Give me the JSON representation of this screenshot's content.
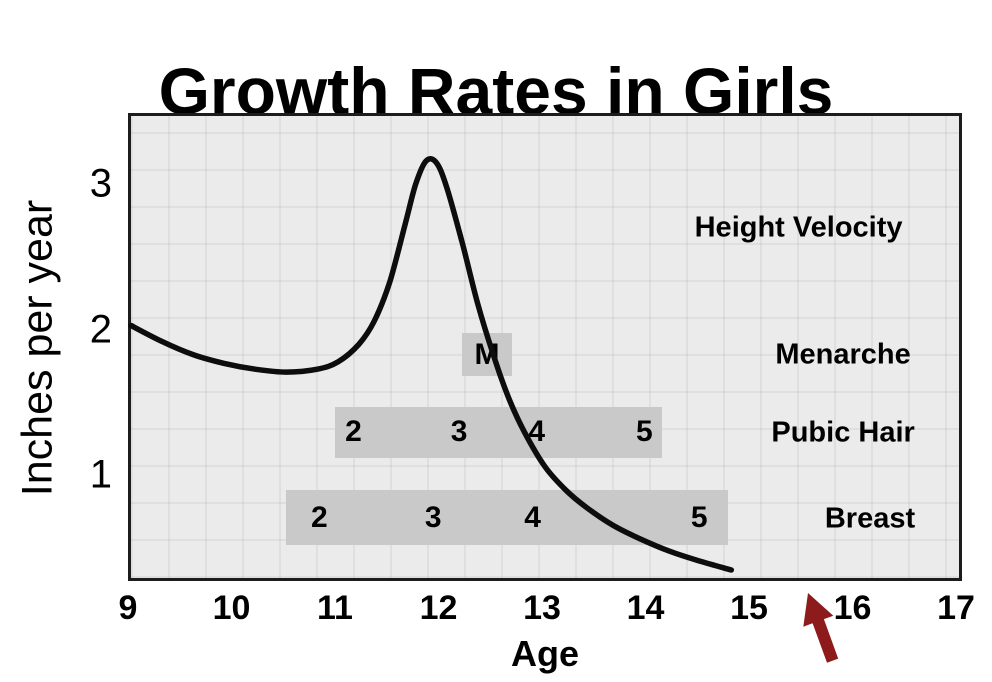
{
  "title": "Growth Rates in Girls",
  "axes": {
    "x_label": "Age",
    "y_label": "Inches per year"
  },
  "colors": {
    "curve": "#0d0d0d",
    "band": "#c9c9c9",
    "arrow": "#8e1b1b",
    "plot_background": "#ebebeb",
    "text": "#000000"
  },
  "chart_data": {
    "type": "line",
    "title": "Growth Rates in Girls",
    "xlabel": "Age",
    "ylabel": "Inches per year",
    "xlim": [
      9,
      17
    ],
    "ylim": [
      0.315,
      3.49
    ],
    "x_ticks": [
      9,
      10,
      11,
      12,
      13,
      14,
      15,
      16,
      17
    ],
    "y_ticks": [
      1,
      2,
      3
    ],
    "grid": "subtle square pattern on light gray plot background",
    "legend_position": "none",
    "series": [
      {
        "name": "Height Velocity",
        "x": [
          9.0,
          9.3,
          9.6,
          9.9,
          10.2,
          10.5,
          10.8,
          11.0,
          11.2,
          11.35,
          11.5,
          11.65,
          11.75,
          11.85,
          11.95,
          12.05,
          12.2,
          12.35,
          12.5,
          12.65,
          12.8,
          13.0,
          13.2,
          13.4,
          13.65,
          13.9,
          14.2,
          14.5,
          14.8
        ],
        "y": [
          2.05,
          1.94,
          1.85,
          1.79,
          1.75,
          1.73,
          1.75,
          1.8,
          1.92,
          2.08,
          2.35,
          2.75,
          3.02,
          3.18,
          3.17,
          3.0,
          2.62,
          2.2,
          1.85,
          1.55,
          1.32,
          1.08,
          0.92,
          0.8,
          0.68,
          0.59,
          0.5,
          0.43,
          0.37
        ]
      }
    ],
    "bands": [
      {
        "id": "menarche",
        "x_start": 12.2,
        "x_end": 12.68,
        "y_top": 2.0,
        "y_bottom": 1.7,
        "labels": [
          {
            "text": "M",
            "x": 12.44
          }
        ]
      },
      {
        "id": "pubic-hair",
        "x_start": 10.97,
        "x_end": 14.13,
        "y_top": 1.49,
        "y_bottom": 1.14,
        "labels": [
          {
            "text": "2",
            "x": 11.15
          },
          {
            "text": "3",
            "x": 12.17
          },
          {
            "text": "4",
            "x": 12.92
          },
          {
            "text": "5",
            "x": 13.96
          }
        ]
      },
      {
        "id": "breast",
        "x_start": 10.5,
        "x_end": 14.77,
        "y_top": 0.92,
        "y_bottom": 0.54,
        "labels": [
          {
            "text": "2",
            "x": 10.82
          },
          {
            "text": "3",
            "x": 11.92
          },
          {
            "text": "4",
            "x": 12.88
          },
          {
            "text": "5",
            "x": 14.49
          }
        ]
      }
    ],
    "annotations": [
      {
        "text": "Height Velocity",
        "x": 15.45,
        "y": 2.72
      },
      {
        "text": "Menarche",
        "x": 15.88,
        "y": 1.85
      },
      {
        "text": "Pubic Hair",
        "x": 15.88,
        "y": 1.31
      },
      {
        "text": "Breast",
        "x": 16.14,
        "y": 0.72
      }
    ]
  }
}
